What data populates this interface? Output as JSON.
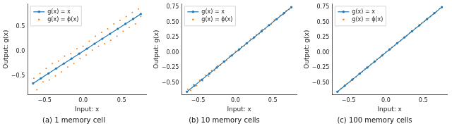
{
  "chart_data": [
    {
      "type": "scatter",
      "title": "(a) 1 memory cell",
      "x_label": "Input: x",
      "y_label": "Output: g(x)",
      "xlim": [
        -0.72,
        0.82
      ],
      "ylim": [
        -0.88,
        0.95
      ],
      "grid": false,
      "legend": "upper left",
      "xticks": [
        {
          "value": -0.5,
          "label": "−0.5"
        },
        {
          "value": 0,
          "label": "0.0"
        },
        {
          "value": 0.5,
          "label": "0.5"
        }
      ],
      "yticks": [
        {
          "value": -0.5,
          "label": "−0.5"
        },
        {
          "value": 0,
          "label": "0.0"
        },
        {
          "value": 0.5,
          "label": "0.5"
        }
      ],
      "series": [
        {
          "name": "g(x) = x",
          "type": "line",
          "marker": "o",
          "color": "#1f77b4",
          "x": [
            -0.65,
            -0.55,
            -0.45,
            -0.35,
            -0.25,
            -0.15,
            -0.05,
            0.05,
            0.15,
            0.25,
            0.35,
            0.45,
            0.55,
            0.65,
            0.75
          ],
          "values": [
            -0.65,
            -0.55,
            -0.45,
            -0.35,
            -0.25,
            -0.15,
            -0.05,
            0.05,
            0.15,
            0.25,
            0.35,
            0.45,
            0.55,
            0.65,
            0.75
          ]
        },
        {
          "name": "g(x) = ϕ(x)",
          "type": "scatter",
          "marker": ".",
          "color": "#ff7f0e",
          "x": [
            -0.64,
            -0.6,
            -0.56,
            -0.52,
            -0.48,
            -0.44,
            -0.4,
            -0.36,
            -0.32,
            -0.28,
            -0.24,
            -0.2,
            -0.16,
            -0.12,
            -0.08,
            -0.04,
            0,
            0.04,
            0.08,
            0.12,
            0.16,
            0.2,
            0.24,
            0.28,
            0.32,
            0.36,
            0.4,
            0.44,
            0.48,
            0.52,
            0.56,
            0.6,
            0.64,
            0.68,
            0.72,
            0.75
          ],
          "values": [
            -0.55,
            -0.78,
            -0.45,
            -0.62,
            -0.35,
            -0.58,
            -0.25,
            -0.5,
            -0.2,
            -0.42,
            -0.1,
            -0.32,
            -0.05,
            -0.25,
            0.05,
            -0.15,
            0.1,
            -0.08,
            0.2,
            0.02,
            0.3,
            0.1,
            0.38,
            0.15,
            0.45,
            0.22,
            0.55,
            0.3,
            0.62,
            0.4,
            0.7,
            0.48,
            0.78,
            0.55,
            0.85,
            0.7
          ]
        }
      ]
    },
    {
      "type": "scatter",
      "title": "(b) 10 memory cells",
      "x_label": "Input: x",
      "y_label": "Output: g(x)",
      "xlim": [
        -0.72,
        0.82
      ],
      "ylim": [
        -0.7,
        0.8
      ],
      "grid": false,
      "legend": "upper left",
      "xticks": [
        {
          "value": -0.5,
          "label": "−0.5"
        },
        {
          "value": 0,
          "label": "0.0"
        },
        {
          "value": 0.5,
          "label": "0.5"
        }
      ],
      "yticks": [
        {
          "value": -0.5,
          "label": "−0.50"
        },
        {
          "value": -0.25,
          "label": "−0.25"
        },
        {
          "value": 0,
          "label": "0.00"
        },
        {
          "value": 0.25,
          "label": "0.25"
        },
        {
          "value": 0.5,
          "label": "0.50"
        },
        {
          "value": 0.75,
          "label": "0.75"
        }
      ],
      "series": [
        {
          "name": "g(x) = x",
          "type": "line",
          "marker": "o",
          "color": "#1f77b4",
          "x": [
            -0.65,
            -0.55,
            -0.45,
            -0.35,
            -0.25,
            -0.15,
            -0.05,
            0.05,
            0.15,
            0.25,
            0.35,
            0.45,
            0.55,
            0.65,
            0.75
          ],
          "values": [
            -0.65,
            -0.55,
            -0.45,
            -0.35,
            -0.25,
            -0.15,
            -0.05,
            0.05,
            0.15,
            0.25,
            0.35,
            0.45,
            0.55,
            0.65,
            0.75
          ]
        },
        {
          "name": "g(x) = ϕ(x)",
          "type": "scatter",
          "marker": ".",
          "color": "#ff7f0e",
          "x": [
            -0.64,
            -0.6,
            -0.56,
            -0.52,
            -0.48,
            -0.44,
            -0.4,
            -0.36,
            -0.32,
            -0.28,
            -0.24,
            -0.2,
            -0.16,
            -0.12,
            -0.08,
            -0.04,
            0,
            0.04,
            0.08,
            0.12,
            0.16,
            0.2,
            0.24,
            0.28,
            0.32,
            0.36,
            0.4,
            0.44,
            0.48,
            0.52,
            0.56,
            0.6,
            0.64,
            0.68,
            0.72,
            0.75
          ],
          "values": [
            -0.61,
            -0.63,
            -0.53,
            -0.55,
            -0.46,
            -0.47,
            -0.38,
            -0.39,
            -0.3,
            -0.3,
            -0.22,
            -0.21,
            -0.15,
            -0.13,
            -0.06,
            -0.05,
            0.02,
            0.03,
            0.1,
            0.11,
            0.15,
            0.22,
            0.23,
            0.29,
            0.31,
            0.38,
            0.39,
            0.45,
            0.47,
            0.54,
            0.55,
            0.61,
            0.63,
            0.69,
            0.71,
            0.74
          ]
        }
      ]
    },
    {
      "type": "scatter",
      "title": "(c) 100 memory cells",
      "x_label": "Input: x",
      "y_label": "Output: g(x)",
      "xlim": [
        -0.72,
        0.82
      ],
      "ylim": [
        -0.7,
        0.8
      ],
      "grid": false,
      "legend": "upper left",
      "xticks": [
        {
          "value": -0.5,
          "label": "−0.5"
        },
        {
          "value": 0,
          "label": "0.0"
        },
        {
          "value": 0.5,
          "label": "0.5"
        }
      ],
      "yticks": [
        {
          "value": -0.5,
          "label": "−0.50"
        },
        {
          "value": -0.25,
          "label": "−0.25"
        },
        {
          "value": 0,
          "label": "0.00"
        },
        {
          "value": 0.25,
          "label": "0.25"
        },
        {
          "value": 0.5,
          "label": "0.50"
        },
        {
          "value": 0.75,
          "label": "0.75"
        }
      ],
      "series": [
        {
          "name": "g(x) = x",
          "type": "line",
          "marker": "o",
          "color": "#1f77b4",
          "x": [
            -0.65,
            -0.55,
            -0.45,
            -0.35,
            -0.25,
            -0.15,
            -0.05,
            0.05,
            0.15,
            0.25,
            0.35,
            0.45,
            0.55,
            0.65,
            0.75
          ],
          "values": [
            -0.65,
            -0.55,
            -0.45,
            -0.35,
            -0.25,
            -0.15,
            -0.05,
            0.05,
            0.15,
            0.25,
            0.35,
            0.45,
            0.55,
            0.65,
            0.75
          ]
        },
        {
          "name": "g(x) = ϕ(x)",
          "type": "scatter",
          "marker": ".",
          "color": "#ff7f0e",
          "x": [
            -0.64,
            -0.6,
            -0.56,
            -0.52,
            -0.48,
            -0.44,
            -0.4,
            -0.36,
            -0.32,
            -0.28,
            -0.24,
            -0.2,
            -0.16,
            -0.12,
            -0.08,
            -0.04,
            0,
            0.04,
            0.08,
            0.12,
            0.16,
            0.2,
            0.24,
            0.28,
            0.32,
            0.36,
            0.4,
            0.44,
            0.48,
            0.52,
            0.56,
            0.6,
            0.64,
            0.68,
            0.72,
            0.75
          ],
          "values": [
            -0.645,
            -0.595,
            -0.565,
            -0.515,
            -0.485,
            -0.435,
            -0.405,
            -0.355,
            -0.325,
            -0.275,
            -0.245,
            -0.195,
            -0.165,
            -0.115,
            -0.085,
            -0.035,
            0.005,
            0.035,
            0.085,
            0.115,
            0.165,
            0.195,
            0.245,
            0.275,
            0.325,
            0.355,
            0.405,
            0.435,
            0.485,
            0.515,
            0.565,
            0.595,
            0.645,
            0.675,
            0.725,
            0.745
          ]
        }
      ]
    }
  ]
}
